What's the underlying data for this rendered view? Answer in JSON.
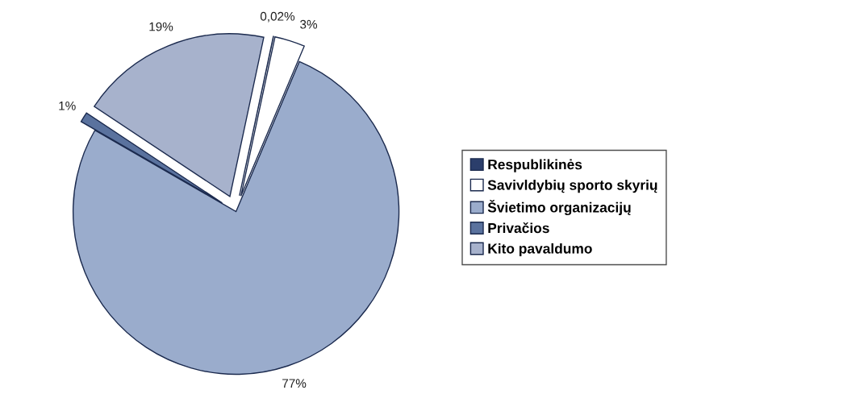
{
  "chart_data": {
    "type": "pie",
    "categories": [
      "Respublikinės",
      "Savivldybių sporto skyrių",
      "Švietimo organizacijų",
      "Privačios",
      "Kito pavaldumo"
    ],
    "values": [
      0.02,
      3,
      77,
      1,
      19
    ],
    "value_labels": [
      "0,02%",
      "3%",
      "77%",
      "1%",
      "19%"
    ],
    "colors": [
      "#2b3e6b",
      "#ffffff",
      "#9aaccc",
      "#5a729e",
      "#a7b2cc"
    ],
    "legend": "right"
  }
}
